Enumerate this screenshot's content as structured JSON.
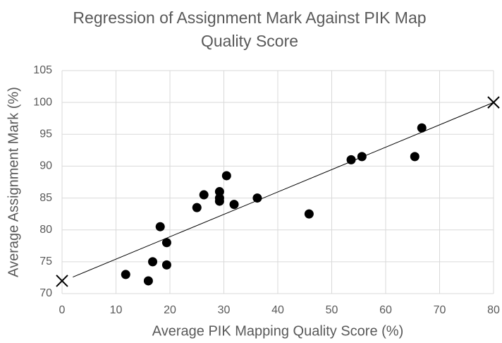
{
  "chart_data": {
    "type": "scatter",
    "title": [
      "Regression of Assignment Mark Against PIK Map",
      "Quality Score"
    ],
    "x_label": "Average PIK Mapping Quality Score (%)",
    "y_label": "Average Assignment Mark (%)",
    "xlim": [
      0,
      80
    ],
    "xticks": [
      0,
      10,
      20,
      30,
      40,
      50,
      60,
      70,
      80
    ],
    "ylim": [
      70,
      105
    ],
    "yticks": [
      70,
      75,
      80,
      85,
      90,
      95,
      100,
      105
    ],
    "grid": true,
    "series": [
      {
        "marker": "circle",
        "color": "#000000",
        "x": [
          11.8,
          16,
          16.8,
          18.2,
          19.4,
          19.4,
          25,
          26.3,
          29.2,
          29.2,
          29.2,
          30.5,
          31.9,
          36.2,
          45.8,
          53.6,
          55.6,
          65.4,
          66.7
        ],
        "values": [
          73,
          72,
          75,
          80.5,
          78,
          74.5,
          83.5,
          85.5,
          86,
          85,
          84.5,
          88.5,
          84,
          85,
          82.5,
          91,
          91.5,
          91.5,
          96
        ]
      },
      {
        "marker": "line",
        "color": "#000000",
        "x": [
          2,
          80
        ],
        "values": [
          72.6,
          100
        ]
      },
      {
        "marker": "cross",
        "color": "#000000",
        "x": [
          0,
          80
        ],
        "values": [
          72,
          100
        ]
      }
    ]
  }
}
